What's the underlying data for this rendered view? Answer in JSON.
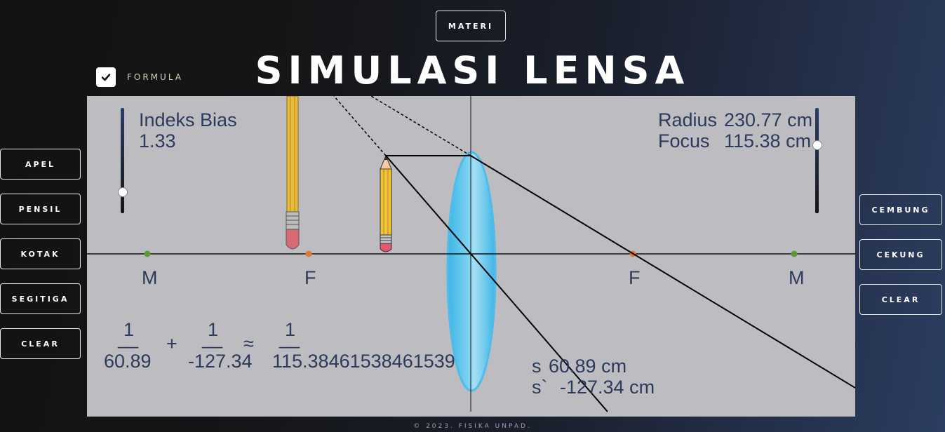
{
  "header": {
    "materi_label": "MATERI",
    "title": "SIMULASI LENSA"
  },
  "formula_toggle": {
    "label": "FORMULA",
    "checked": true
  },
  "left_buttons": [
    {
      "label": "APEL"
    },
    {
      "label": "PENSIL"
    },
    {
      "label": "KOTAK"
    },
    {
      "label": "SEGITIGA"
    },
    {
      "label": "CLEAR"
    }
  ],
  "right_buttons": [
    {
      "label": "CEMBUNG"
    },
    {
      "label": "CEKUNG"
    },
    {
      "label": "CLEAR"
    }
  ],
  "sim": {
    "index_label": "Indeks Bias",
    "index_value": "1.33",
    "radius_label": "Radius",
    "radius_value": "230.77 cm",
    "focus_label": "Focus",
    "focus_value": "115.38 cm",
    "axis_labels": {
      "m_left": "M",
      "f_left": "F",
      "f_right": "F",
      "m_right": "M"
    },
    "s_label": "s",
    "s_value": "60.89 cm",
    "s_prime_label": "s`",
    "s_prime_value": "-127.34 cm"
  },
  "formula": {
    "one": "1",
    "term1_den": "60.89",
    "plus": "+",
    "term2_den": "-127.34",
    "approx": "≈",
    "term3_den": "115.38461538461539",
    "bar": "__"
  },
  "footer": "© 2023. FISIKA UNPAD.",
  "colors": {
    "lens": "#58c3ec",
    "axis_m": "#5a9a3a",
    "axis_f": "#e07a30",
    "text": "#2c3a5c",
    "canvas": "#bdbcc1"
  }
}
